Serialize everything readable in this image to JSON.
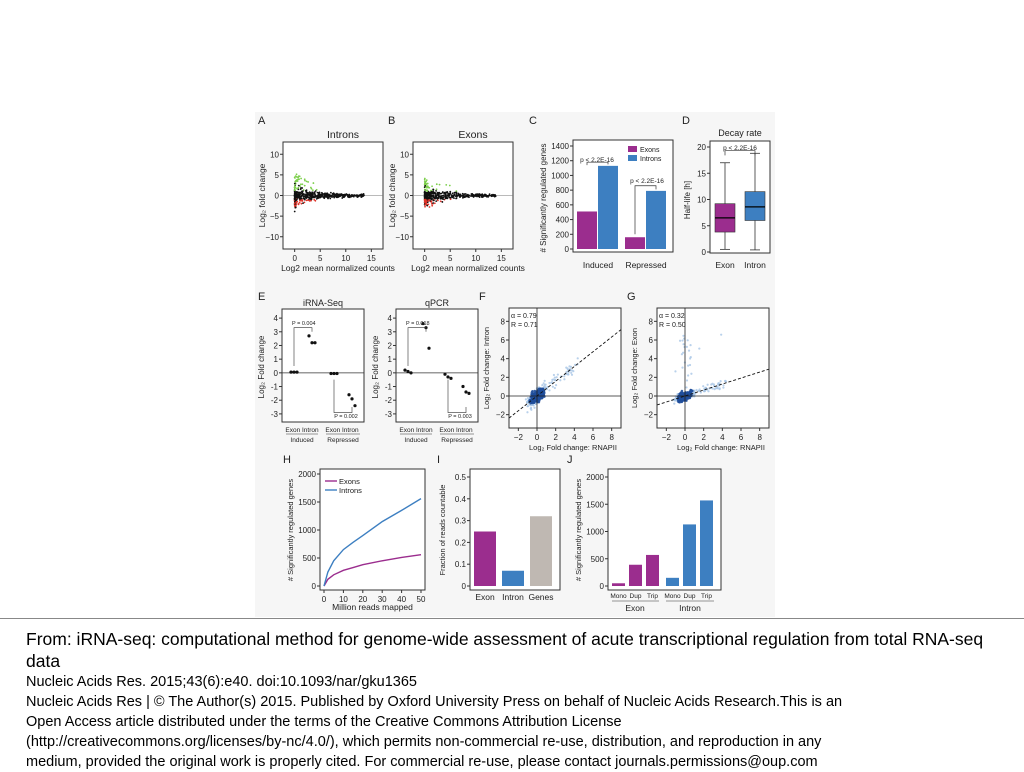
{
  "figure": {
    "panels": {
      "A": {
        "letter": "A",
        "title": "Introns",
        "ylabel": "Log₂ fold change",
        "xlabel": "Log2 mean normalized counts",
        "yticks": [
          "10",
          "5",
          "0",
          "−5",
          "−10"
        ],
        "xticks": [
          "0",
          "5",
          "10",
          "15"
        ]
      },
      "B": {
        "letter": "B",
        "title": "Exons",
        "ylabel": "Log₂ fold change",
        "xlabel": "Log2 mean normalized counts",
        "yticks": [
          "10",
          "5",
          "0",
          "−5",
          "−10"
        ],
        "xticks": [
          "0",
          "5",
          "10",
          "15"
        ]
      },
      "C": {
        "letter": "C",
        "ylabel": "# Significantly regulated genes",
        "yticks": [
          "1400",
          "1200",
          "1000",
          "800",
          "600",
          "400",
          "200",
          "0"
        ],
        "legend": [
          "Exons",
          "Introns"
        ],
        "pvalues": [
          "p < 2.2E-16",
          "p < 2.2E-16"
        ],
        "groups": [
          "Induced",
          "Repressed"
        ]
      },
      "D": {
        "letter": "D",
        "title": "Decay rate",
        "ylabel": "Half-life [h]",
        "yticks": [
          "20",
          "15",
          "10",
          "5",
          "0"
        ],
        "pvalue": "p < 2.2E-16",
        "groups": [
          "Exon",
          "Intron"
        ]
      },
      "E": {
        "letter": "E",
        "sub1": "iRNA-Seq",
        "sub2": "qPCR",
        "ylabel": "Log₂ Fold change",
        "yticks": [
          "4",
          "3",
          "2",
          "1",
          "0",
          "-1",
          "-2",
          "-3"
        ],
        "p1a": "P = 0.004",
        "p1b": "P = 0.002",
        "p2a": "P = 0.018",
        "p2b": "P = 0.003",
        "xl1": "Exon Intron",
        "xl2": "Exon Intron",
        "g1": "Induced",
        "g2": "Repressed"
      },
      "F": {
        "letter": "F",
        "stat1": "α = 0.79",
        "stat2": "R = 0.71",
        "ylabel": "Log₂ Fold change: Intron",
        "xlabel": "Log₂ Fold change: RNAPII",
        "yticks": [
          "8",
          "6",
          "4",
          "2",
          "0",
          "−2"
        ],
        "xticks": [
          "−2",
          "0",
          "2",
          "4",
          "6",
          "8"
        ]
      },
      "G": {
        "letter": "G",
        "stat1": "α = 0.32",
        "stat2": "R = 0.50",
        "ylabel": "Log₂ Fold change: Exon",
        "xlabel": "Log₂ Fold change: RNAPII",
        "yticks": [
          "8",
          "6",
          "4",
          "2",
          "0",
          "−2"
        ],
        "xticks": [
          "−2",
          "0",
          "2",
          "4",
          "6",
          "8"
        ]
      },
      "H": {
        "letter": "H",
        "ylabel": "# Significantly regulated genes",
        "xlabel": "Million reads mapped",
        "yticks": [
          "2000",
          "1500",
          "1000",
          "500",
          "0"
        ],
        "xticks": [
          "0",
          "10",
          "20",
          "30",
          "40",
          "50"
        ],
        "legend": [
          "Exons",
          "Introns"
        ]
      },
      "I": {
        "letter": "I",
        "ylabel": "Fraction of reads countable",
        "yticks": [
          "0.5",
          "0.4",
          "0.3",
          "0.2",
          "0.1",
          "0"
        ],
        "cats": [
          "Exon",
          "Intron",
          "Genes"
        ]
      },
      "J": {
        "letter": "J",
        "ylabel": "# Significantly regulated genes",
        "yticks": [
          "2000",
          "1500",
          "1000",
          "500",
          "0"
        ],
        "cats": [
          "Mono",
          "Dup",
          "Trip",
          "Mono",
          "Dup",
          "Trip"
        ],
        "groups": [
          "Exon",
          "Intron"
        ]
      }
    },
    "colors": {
      "purple": "#9b2d8e",
      "blue": "#3d7fc1",
      "gray": "#bfb8b2",
      "green": "#7ccf4b",
      "red": "#e0342a",
      "scatter_blue": "#a8c6e6"
    }
  },
  "chart_data": [
    {
      "panel": "C",
      "type": "bar",
      "categories": [
        "Induced",
        "Repressed"
      ],
      "series": [
        {
          "name": "Exons",
          "values": [
            510,
            160
          ]
        },
        {
          "name": "Introns",
          "values": [
            1130,
            790
          ]
        }
      ],
      "ylabel": "# Significantly regulated genes",
      "ylim": [
        0,
        1400
      ]
    },
    {
      "panel": "D",
      "type": "box",
      "categories": [
        "Exon",
        "Intron"
      ],
      "ylabel": "Half-life [h]",
      "ylim": [
        0,
        20
      ],
      "boxes": [
        {
          "low": 0.5,
          "q1": 3.8,
          "median": 6.5,
          "q3": 9.2,
          "high": 17.0
        },
        {
          "low": 0.4,
          "q1": 6.0,
          "median": 8.6,
          "q3": 11.5,
          "high": 18.8
        }
      ]
    },
    {
      "panel": "E-iRNA-Seq",
      "type": "scatter",
      "ylim": [
        -3,
        4
      ],
      "x": [
        0,
        0,
        0,
        1,
        1,
        1,
        2,
        2,
        2,
        3,
        3,
        3
      ],
      "y": [
        0.05,
        0.05,
        0.05,
        2.7,
        2.2,
        2.2,
        -0.05,
        -0.05,
        -0.05,
        -1.6,
        -1.9,
        -2.4
      ]
    },
    {
      "panel": "E-qPCR",
      "type": "scatter",
      "ylim": [
        -3,
        4
      ],
      "x": [
        0,
        0,
        0,
        1,
        1,
        1,
        2,
        2,
        2,
        3,
        3,
        3
      ],
      "y": [
        0.2,
        0.1,
        0.0,
        3.6,
        3.3,
        1.8,
        -0.1,
        -0.3,
        -0.4,
        -1.0,
        -1.4,
        -1.5
      ]
    },
    {
      "panel": "H",
      "type": "line",
      "xlabel": "Million reads mapped",
      "ylabel": "# Significantly regulated genes",
      "ylim": [
        0,
        2000
      ],
      "x": [
        0,
        2,
        5,
        10,
        15,
        20,
        30,
        40,
        50
      ],
      "series": [
        {
          "name": "Exons",
          "values": [
            0,
            120,
            200,
            280,
            330,
            380,
            450,
            510,
            560
          ]
        },
        {
          "name": "Introns",
          "values": [
            0,
            250,
            450,
            650,
            780,
            900,
            1150,
            1350,
            1560
          ]
        }
      ]
    },
    {
      "panel": "I",
      "type": "bar",
      "categories": [
        "Exon",
        "Intron",
        "Genes"
      ],
      "values": [
        0.25,
        0.07,
        0.32
      ],
      "ylabel": "Fraction of reads countable",
      "ylim": [
        0,
        0.5
      ]
    },
    {
      "panel": "J",
      "type": "bar",
      "categories": [
        "Mono",
        "Dup",
        "Trip",
        "Mono",
        "Dup",
        "Trip"
      ],
      "groups": [
        "Exon",
        "Exon",
        "Exon",
        "Intron",
        "Intron",
        "Intron"
      ],
      "values": [
        50,
        390,
        570,
        150,
        1130,
        1570
      ],
      "ylabel": "# Significantly regulated genes",
      "ylim": [
        0,
        2000
      ]
    }
  ],
  "caption": {
    "from": "From: iRNA-seq: computational method for genome-wide assessment of acute transcriptional regulation from total RNA-seq data",
    "citation": "Nucleic Acids Res. 2015;43(6):e40. doi:10.1093/nar/gku1365",
    "license": [
      "Nucleic Acids Res | © The Author(s) 2015. Published by Oxford University Press on behalf of Nucleic Acids Research.This is an",
      "Open Access article distributed under the terms of the Creative Commons Attribution License",
      "(http://creativecommons.org/licenses/by-nc/4.0/), which permits non-commercial re-use, distribution, and reproduction in any",
      "medium, provided the original work is properly cited. For commercial re-use, please contact journals.permissions@oup.com"
    ]
  }
}
